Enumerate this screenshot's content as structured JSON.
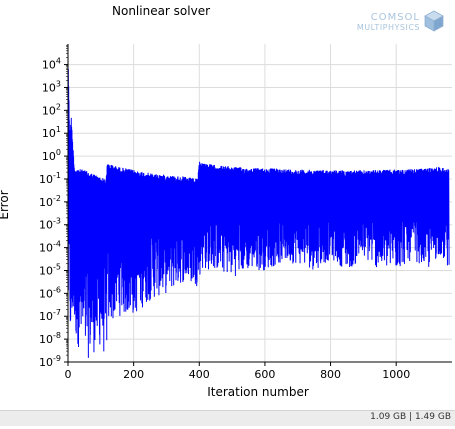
{
  "chart_data": {
    "type": "line",
    "title": "Nonlinear solver",
    "xlabel": "Iteration number",
    "ylabel": "Error",
    "xlim": [
      0,
      1170
    ],
    "ylim_log10": [
      -9,
      4.9
    ],
    "y_scale": "log",
    "grid": true,
    "xticks": [
      0,
      200,
      400,
      600,
      800,
      1000
    ],
    "yticks_exponents": [
      -9,
      -8,
      -7,
      -6,
      -5,
      -4,
      -3,
      -2,
      -1,
      0,
      1,
      2,
      3,
      4
    ],
    "series": [
      {
        "color": "#0000ff",
        "envelope_x": [
          0,
          5,
          10,
          15,
          20,
          50,
          100,
          115,
          120,
          150,
          200,
          250,
          300,
          350,
          395,
          400,
          405,
          450,
          500,
          550,
          600,
          650,
          700,
          750,
          800,
          850,
          900,
          950,
          1000,
          1050,
          1100,
          1130,
          1160
        ],
        "upper": [
          50000,
          10,
          50,
          3,
          0.3,
          0.25,
          0.12,
          0.1,
          0.5,
          0.35,
          0.25,
          0.18,
          0.15,
          0.13,
          0.1,
          0.6,
          0.55,
          0.4,
          0.35,
          0.3,
          0.3,
          0.28,
          0.26,
          0.25,
          0.25,
          0.24,
          0.24,
          0.25,
          0.26,
          0.27,
          0.3,
          0.35,
          0.28
        ],
        "lower": [
          1e-08,
          1e-08,
          1e-09,
          5e-08,
          1e-08,
          1e-09,
          5e-09,
          1e-09,
          3e-08,
          1e-07,
          1e-07,
          5e-07,
          1e-06,
          3e-06,
          2e-06,
          5e-06,
          1e-05,
          1e-05,
          5e-06,
          1e-05,
          1e-05,
          2e-05,
          2e-05,
          1e-05,
          3e-05,
          1e-05,
          3e-05,
          1e-05,
          1e-05,
          3e-05,
          1e-05,
          5e-05,
          1e-05
        ]
      }
    ]
  },
  "logo": {
    "line1": "COMSOL",
    "line2": "MULTIPHYSICS",
    "color": "#a9c4dd"
  },
  "status_bar": {
    "text": "1.09 GB | 1.49 GB"
  }
}
